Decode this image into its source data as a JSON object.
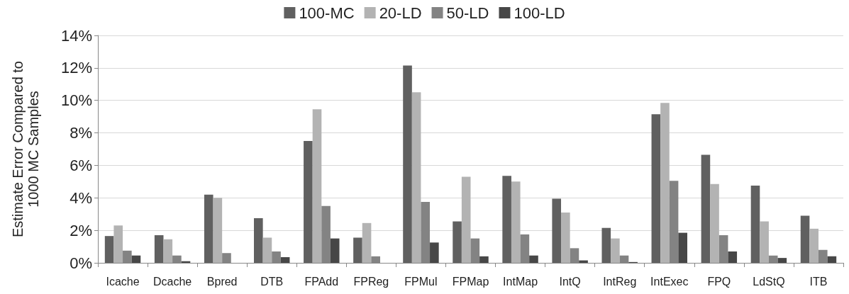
{
  "chart_data": {
    "type": "bar",
    "ylabel": "Estimate Error Compared to\n1000 MC Samples",
    "categories": [
      "Icache",
      "Dcache",
      "Bpred",
      "DTB",
      "FPAdd",
      "FPReg",
      "FPMul",
      "FPMap",
      "IntMap",
      "IntQ",
      "IntReg",
      "IntExec",
      "FPQ",
      "LdStQ",
      "ITB"
    ],
    "series": [
      {
        "name": "100-MC",
        "color": "#606060",
        "values": [
          1.65,
          1.7,
          4.2,
          2.75,
          7.5,
          1.55,
          12.15,
          2.55,
          5.35,
          3.95,
          2.15,
          9.15,
          6.65,
          4.75,
          2.9
        ]
      },
      {
        "name": "20-LD",
        "color": "#b3b3b3",
        "values": [
          2.3,
          1.45,
          4.0,
          1.55,
          9.45,
          2.45,
          10.5,
          5.3,
          5.0,
          3.1,
          1.5,
          9.85,
          4.85,
          2.55,
          2.1
        ]
      },
      {
        "name": "50-LD",
        "color": "#838383",
        "values": [
          0.75,
          0.45,
          0.6,
          0.7,
          3.5,
          0.4,
          3.75,
          1.5,
          1.75,
          0.9,
          0.45,
          5.05,
          1.7,
          0.45,
          0.8
        ]
      },
      {
        "name": "100-LD",
        "color": "#474747",
        "values": [
          0.45,
          0.1,
          0,
          0.35,
          1.5,
          0,
          1.25,
          0.4,
          0.45,
          0.15,
          0.05,
          1.85,
          0.7,
          0.3,
          0.4
        ]
      }
    ],
    "ylim": [
      0,
      14
    ],
    "yticks": [
      {
        "value": 0,
        "label": "0%"
      },
      {
        "value": 2,
        "label": "2%"
      },
      {
        "value": 4,
        "label": "4%"
      },
      {
        "value": 6,
        "label": "6%"
      },
      {
        "value": 8,
        "label": "8%"
      },
      {
        "value": 10,
        "label": "10%"
      },
      {
        "value": 12,
        "label": "12%"
      },
      {
        "value": 14,
        "label": "14%"
      }
    ],
    "grid": "y",
    "legend": "top"
  }
}
